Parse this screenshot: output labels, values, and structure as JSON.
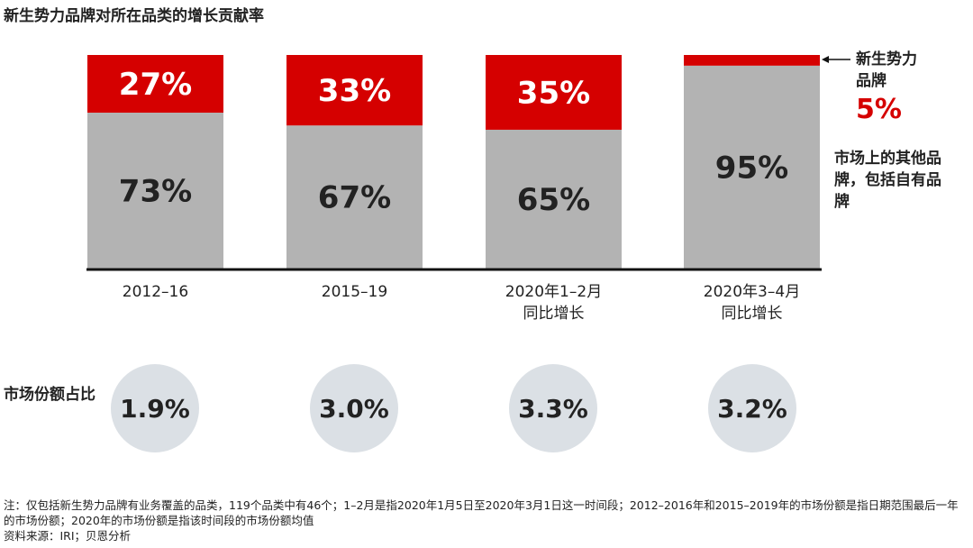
{
  "title": "新生势力品牌对所在品类的增长贡献率",
  "chart_data": {
    "type": "bar",
    "stacked": true,
    "categories": [
      "2012–16",
      "2015–19",
      "2020年1–2月\n同比增长",
      "2020年3–4月\n同比增长"
    ],
    "series": [
      {
        "name": "市场上的其他品牌，包括自有品牌",
        "values": [
          73,
          67,
          65,
          95
        ],
        "labels": [
          "73%",
          "67%",
          "65%",
          "95%"
        ],
        "color": "#b3b3b3"
      },
      {
        "name": "新生势力品牌",
        "values": [
          27,
          33,
          35,
          5
        ],
        "labels": [
          "27%",
          "33%",
          "35%",
          ""
        ],
        "color": "#d50000"
      }
    ],
    "ylim": [
      0,
      100
    ]
  },
  "legend": {
    "new_brands_label": "新生势力品牌",
    "new_brands_value": "5%",
    "other_brands_label": "市场上的其他品牌，包括自有品牌"
  },
  "market_share": {
    "label": "市场份额占比",
    "values": [
      "1.9%",
      "3.0%",
      "3.3%",
      "3.2%"
    ]
  },
  "notes": {
    "line1": "注：仅包括新生势力品牌有业务覆盖的品类，119个品类中有46个；1–2月是指2020年1月5日至2020年3月1日这一时间段；2012–2016年和2015–2019年的市场份额是指日期范围最后一年的市场份额；2020年的市场份额是指该时间段的市场份额均值",
    "line2": "资料来源：IRI；贝恩分析"
  }
}
